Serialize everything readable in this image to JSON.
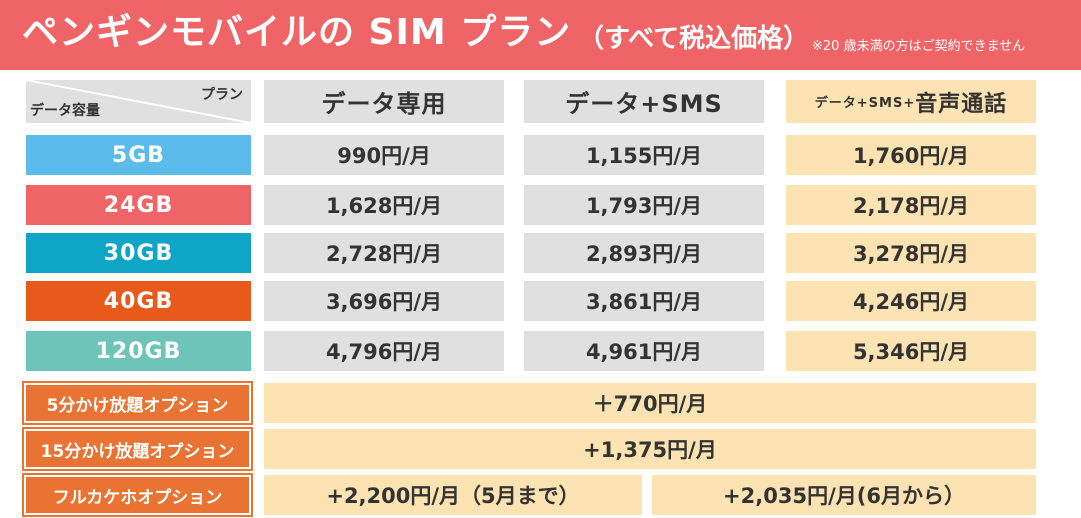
{
  "banner": {
    "title": "ペンギンモバイルの SIM プラン",
    "subtitle": "（すべて税込価格）",
    "note": "※20 歳未満の方はご契約できません"
  },
  "corner": {
    "plan_label": "プラン",
    "capacity_label": "データ容量"
  },
  "headers": {
    "data_only": "データ専用",
    "data_sms": "データ+SMS",
    "voice_small": "データ+SMS+",
    "voice_big": "音声通話"
  },
  "colors": {
    "banner": "#ee6467",
    "gb_5": "#5bbbea",
    "gb_24": "#ee6467",
    "gb_30": "#0ea5c6",
    "gb_40": "#e85a1c",
    "gb_120": "#6ec4b8",
    "option": "#e87332",
    "voice_bg": "#fde3b1",
    "gray_bg": "#e0e0e0"
  },
  "rows": [
    {
      "label": "5GB",
      "data": "990円/月",
      "sms": "1,155円/月",
      "voice": "1,760円/月"
    },
    {
      "label": "24GB",
      "data": "1,628円/月",
      "sms": "1,793円/月",
      "voice": "2,178円/月"
    },
    {
      "label": "30GB",
      "data": "2,728円/月",
      "sms": "2,893円/月",
      "voice": "3,278円/月"
    },
    {
      "label": "40GB",
      "data": "3,696円/月",
      "sms": "3,861円/月",
      "voice": "4,246円/月"
    },
    {
      "label": "120GB",
      "data": "4,796円/月",
      "sms": "4,961円/月",
      "voice": "5,346円/月"
    }
  ],
  "options": [
    {
      "label": "5分かけ放題オプション",
      "value": "＋770円/月"
    },
    {
      "label": "15分かけ放題オプション",
      "value": "+1,375円/月"
    },
    {
      "label": "フルカケホオプション",
      "value_a": "+2,200円/月（5月まで）",
      "value_b": "+2,035円/月(6月から）"
    }
  ]
}
